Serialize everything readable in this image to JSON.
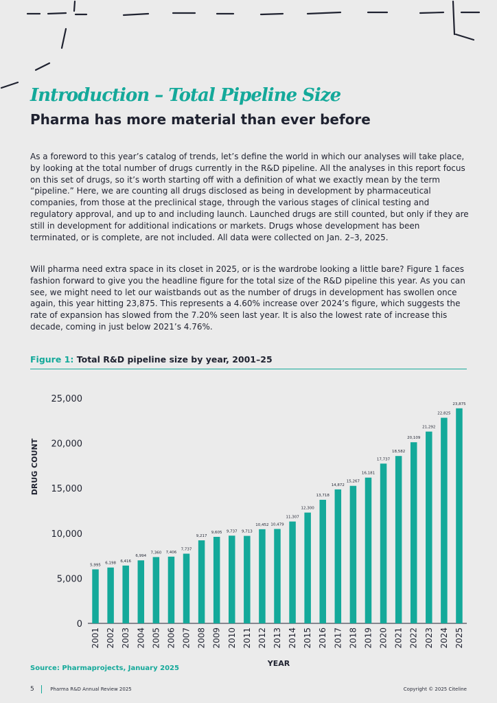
{
  "header": {
    "title": "Introduction – Total Pipeline Size",
    "subtitle": "Pharma has more material than ever before"
  },
  "body": {
    "paragraph1": "As a foreword to this year’s catalog of trends, let’s define the world in which our analyses will take place, by looking at the total number of drugs currently in the R&D pipeline. All the analyses in this report focus on this set of drugs, so it’s worth starting off with a definition of what we exactly mean by the term “pipeline.” Here, we are counting all drugs disclosed as being in development by pharmaceutical companies, from those at the preclinical stage, through the various stages of clinical testing and regulatory approval, and up to and including launch. Launched drugs are still counted, but only if they are still in development for additional indications or markets. Drugs whose development has been terminated, or is complete, are not included. All data were collected on Jan. 2–3, 2025.",
    "paragraph2": "Will pharma need extra space in its closet in 2025, or is the wardrobe looking a little bare? Figure 1 faces fashion forward to give you the headline figure for the total size of the R&D pipeline this year. As you can see, we might need to let our waistbands out as the number of drugs in development has swollen once again, this year hitting 23,875. This represents a 4.60% increase over 2024’s figure, which suggests the rate of expansion has slowed from the 7.20% seen last year. It is also the lowest rate of increase this decade, coming in just below 2021’s 4.76%."
  },
  "figure": {
    "label": "Figure 1:",
    "caption": "Total R&D pipeline size by year, 2001–25",
    "source": "Source: Pharmaprojects, January 2025"
  },
  "chart_data": {
    "type": "bar",
    "title": "Total R&D pipeline size by year, 2001–25",
    "xlabel": "YEAR",
    "ylabel": "DRUG COUNT",
    "ylim": [
      0,
      25000
    ],
    "yticks": [
      0,
      5000,
      10000,
      15000,
      20000,
      25000
    ],
    "ytick_labels": [
      "0",
      "5,000",
      "10,000",
      "15,000",
      "20,000",
      "25,000"
    ],
    "categories": [
      "2001",
      "2002",
      "2003",
      "2004",
      "2005",
      "2006",
      "2007",
      "2008",
      "2009",
      "2010",
      "2011",
      "2012",
      "2013",
      "2014",
      "2015",
      "2016",
      "2017",
      "2018",
      "2019",
      "2020",
      "2021",
      "2022",
      "2023",
      "2024",
      "2025"
    ],
    "values": [
      5995,
      6198,
      6416,
      6994,
      7360,
      7406,
      7737,
      9217,
      9605,
      9737,
      9713,
      10452,
      10479,
      11307,
      12300,
      13718,
      14872,
      15267,
      16181,
      17737,
      18582,
      20109,
      21292,
      22825,
      23875
    ],
    "value_labels": [
      "5,995",
      "6,198",
      "6,416",
      "6,994",
      "7,360",
      "7,406",
      "7,737",
      "9,217",
      "9,605",
      "9,737",
      "9,713",
      "10,452",
      "10,479",
      "11,307",
      "12,300",
      "13,718",
      "14,872",
      "15,267",
      "16,181",
      "17,737",
      "18,582",
      "20,109",
      "21,292",
      "22,825",
      "23,875"
    ],
    "grid": false,
    "bar_color": "#14a99a"
  },
  "footer": {
    "page_number": "5",
    "publication": "Pharma R&D Annual Review 2025",
    "copyright": "Copyright © 2025 Citeline"
  },
  "colors": {
    "accent": "#14a99a",
    "text": "#1f2230",
    "background": "#ebebeb"
  }
}
